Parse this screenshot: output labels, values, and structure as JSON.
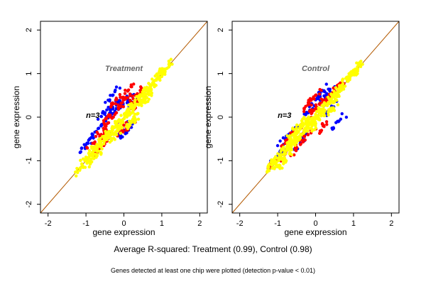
{
  "colors": {
    "both": "#ffff00",
    "one": "#ff0000",
    "none": "#0000ff",
    "diagonal": "#b35900",
    "frame": "#000000"
  },
  "summary_text": "Average R-squared: Treatment (0.99), Control (0.98)",
  "footnote_text": "Genes detected at least one chip were plotted (detection p-value < 0.01)",
  "chart_data": [
    {
      "type": "scatter",
      "title": "Treatment",
      "annotation": "n=3",
      "xlabel": "gene expression",
      "ylabel": "gene expression",
      "xlim": [
        -2.2,
        2.2
      ],
      "ylim": [
        -2.2,
        2.2
      ],
      "xticks": [
        "-2",
        "-1",
        "0",
        "1",
        "2"
      ],
      "yticks": [
        "-2",
        "-1",
        "0",
        "1",
        "2"
      ],
      "grid": false,
      "reference_line": {
        "slope": 1,
        "intercept": 0
      },
      "series": [
        {
          "color": "blue",
          "points": [
            [
              -0.9,
              -0.5
            ],
            [
              -0.5,
              0.1
            ],
            [
              -0.3,
              0.2
            ],
            [
              -0.1,
              0.3
            ],
            [
              0.0,
              -0.3
            ],
            [
              0.2,
              0.3
            ],
            [
              -0.3,
              0.5
            ],
            [
              -0.95,
              -0.6
            ],
            [
              -0.6,
              -0.2
            ],
            [
              0.05,
              -0.35
            ],
            [
              -0.2,
              0.2
            ],
            [
              0.1,
              0.35
            ]
          ]
        },
        {
          "color": "red",
          "points": [
            [
              -0.8,
              -0.6
            ],
            [
              -0.5,
              -0.2
            ],
            [
              -0.4,
              0.05
            ],
            [
              -0.2,
              0.1
            ],
            [
              0.0,
              0.4
            ],
            [
              0.15,
              -0.2
            ],
            [
              -0.6,
              -0.4
            ],
            [
              0.3,
              0.5
            ],
            [
              -0.7,
              -0.8
            ],
            [
              0.2,
              0.2
            ],
            [
              -0.1,
              -0.3
            ],
            [
              0.1,
              0.6
            ],
            [
              -0.3,
              0.3
            ],
            [
              0.4,
              0.45
            ],
            [
              -0.45,
              -0.55
            ]
          ]
        },
        {
          "color": "yellow",
          "points": [
            [
              -1.1,
              -1.1
            ],
            [
              -0.9,
              -0.85
            ],
            [
              -0.7,
              -0.7
            ],
            [
              -0.5,
              -0.45
            ],
            [
              -0.3,
              -0.3
            ],
            [
              -0.1,
              -0.1
            ],
            [
              0.1,
              0.1
            ],
            [
              0.3,
              0.3
            ],
            [
              0.5,
              0.5
            ],
            [
              0.7,
              0.7
            ],
            [
              0.9,
              0.9
            ],
            [
              1.05,
              1.1
            ],
            [
              -0.8,
              -0.95
            ],
            [
              -0.2,
              -0.4
            ],
            [
              0.2,
              -0.1
            ],
            [
              0.6,
              0.45
            ]
          ]
        }
      ]
    },
    {
      "type": "scatter",
      "title": "Control",
      "annotation": "n=3",
      "xlabel": "gene expression",
      "ylabel": "gene expression",
      "xlim": [
        -2.2,
        2.2
      ],
      "ylim": [
        -2.2,
        2.2
      ],
      "xticks": [
        "-2",
        "-1",
        "0",
        "1",
        "2"
      ],
      "yticks": [
        "-2",
        "-1",
        "0",
        "1",
        "2"
      ],
      "grid": false,
      "reference_line": {
        "slope": 1,
        "intercept": 0
      },
      "series": [
        {
          "color": "blue",
          "points": [
            [
              -1.0,
              -0.9
            ],
            [
              -0.6,
              -0.3
            ],
            [
              -0.2,
              0.1
            ],
            [
              0.0,
              0.4
            ],
            [
              0.3,
              0.5
            ],
            [
              0.6,
              -0.1
            ],
            [
              -0.8,
              -0.5
            ],
            [
              0.4,
              0.2
            ],
            [
              -0.4,
              -0.6
            ],
            [
              0.2,
              0.6
            ]
          ]
        },
        {
          "color": "red",
          "points": [
            [
              -1.05,
              -1.0
            ],
            [
              -0.7,
              -0.5
            ],
            [
              -0.4,
              -0.2
            ],
            [
              -0.1,
              0.1
            ],
            [
              0.1,
              0.3
            ],
            [
              0.3,
              0.4
            ],
            [
              -0.5,
              -0.7
            ],
            [
              -0.3,
              0.2
            ],
            [
              0.5,
              0.6
            ],
            [
              0.2,
              -0.2
            ],
            [
              -0.8,
              -0.8
            ],
            [
              0.0,
              0.5
            ],
            [
              -0.2,
              -0.4
            ],
            [
              0.6,
              0.7
            ]
          ]
        },
        {
          "color": "yellow",
          "points": [
            [
              -1.15,
              -1.1
            ],
            [
              -0.95,
              -0.9
            ],
            [
              -0.7,
              -0.7
            ],
            [
              -0.5,
              -0.5
            ],
            [
              -0.3,
              -0.3
            ],
            [
              -0.1,
              -0.1
            ],
            [
              0.1,
              0.1
            ],
            [
              0.3,
              0.3
            ],
            [
              0.5,
              0.5
            ],
            [
              0.7,
              0.7
            ],
            [
              0.9,
              0.9
            ],
            [
              1.05,
              1.1
            ],
            [
              -0.85,
              -1.0
            ],
            [
              -0.4,
              -0.2
            ],
            [
              0.0,
              -0.15
            ],
            [
              0.4,
              0.2
            ],
            [
              -0.6,
              -0.4
            ]
          ]
        }
      ]
    }
  ]
}
